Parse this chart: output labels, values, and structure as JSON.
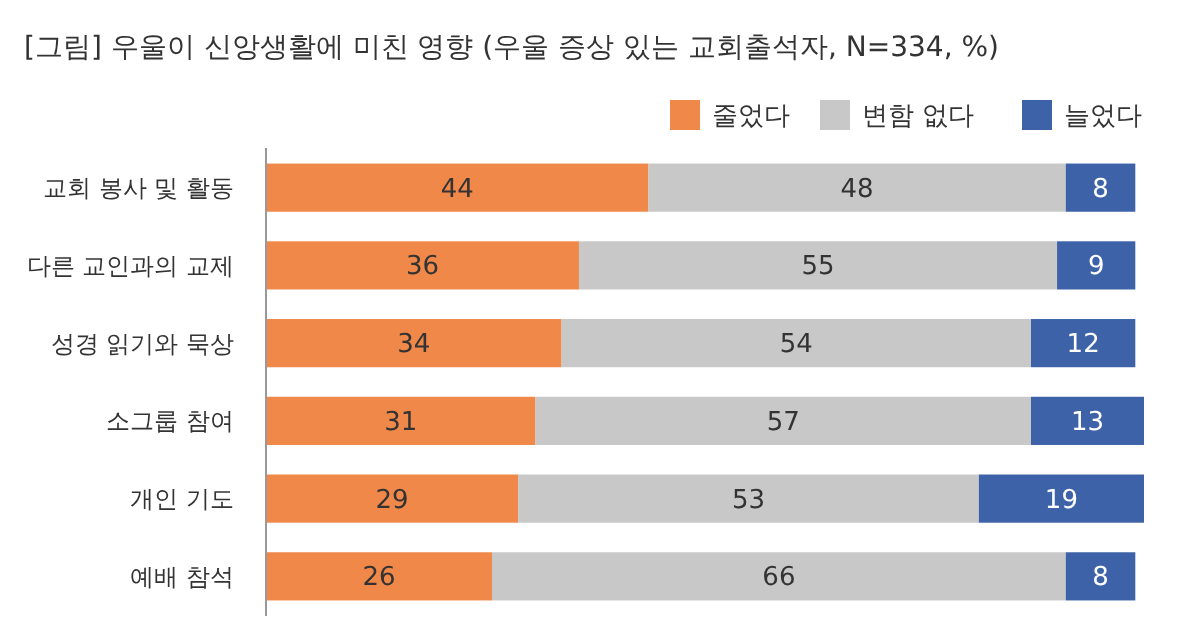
{
  "chart_data": {
    "type": "bar",
    "orientation": "horizontal",
    "stacked": true,
    "title": "[그림] 우울이 신앙생활에 미친 영향 (우울 증상 있는 교회출석자, N=334, %)",
    "categories": [
      "교회 봉사 및 활동",
      "다른 교인과의 교제",
      "성경 읽기와 묵상",
      "소그룹 참여",
      "개인 기도",
      "예배 참석"
    ],
    "series": [
      {
        "name": "줄었다",
        "color": "#f0884a",
        "values": [
          44,
          36,
          34,
          31,
          29,
          26
        ]
      },
      {
        "name": "변함 없다",
        "color": "#c8c8c8",
        "values": [
          48,
          55,
          54,
          57,
          53,
          66
        ]
      },
      {
        "name": "늘었다",
        "color": "#3e62a8",
        "values": [
          8,
          9,
          12,
          13,
          19,
          8
        ]
      }
    ],
    "xlim": [
      0,
      101
    ],
    "tick_labels": "y",
    "data_labels": true,
    "legend": "top right"
  }
}
